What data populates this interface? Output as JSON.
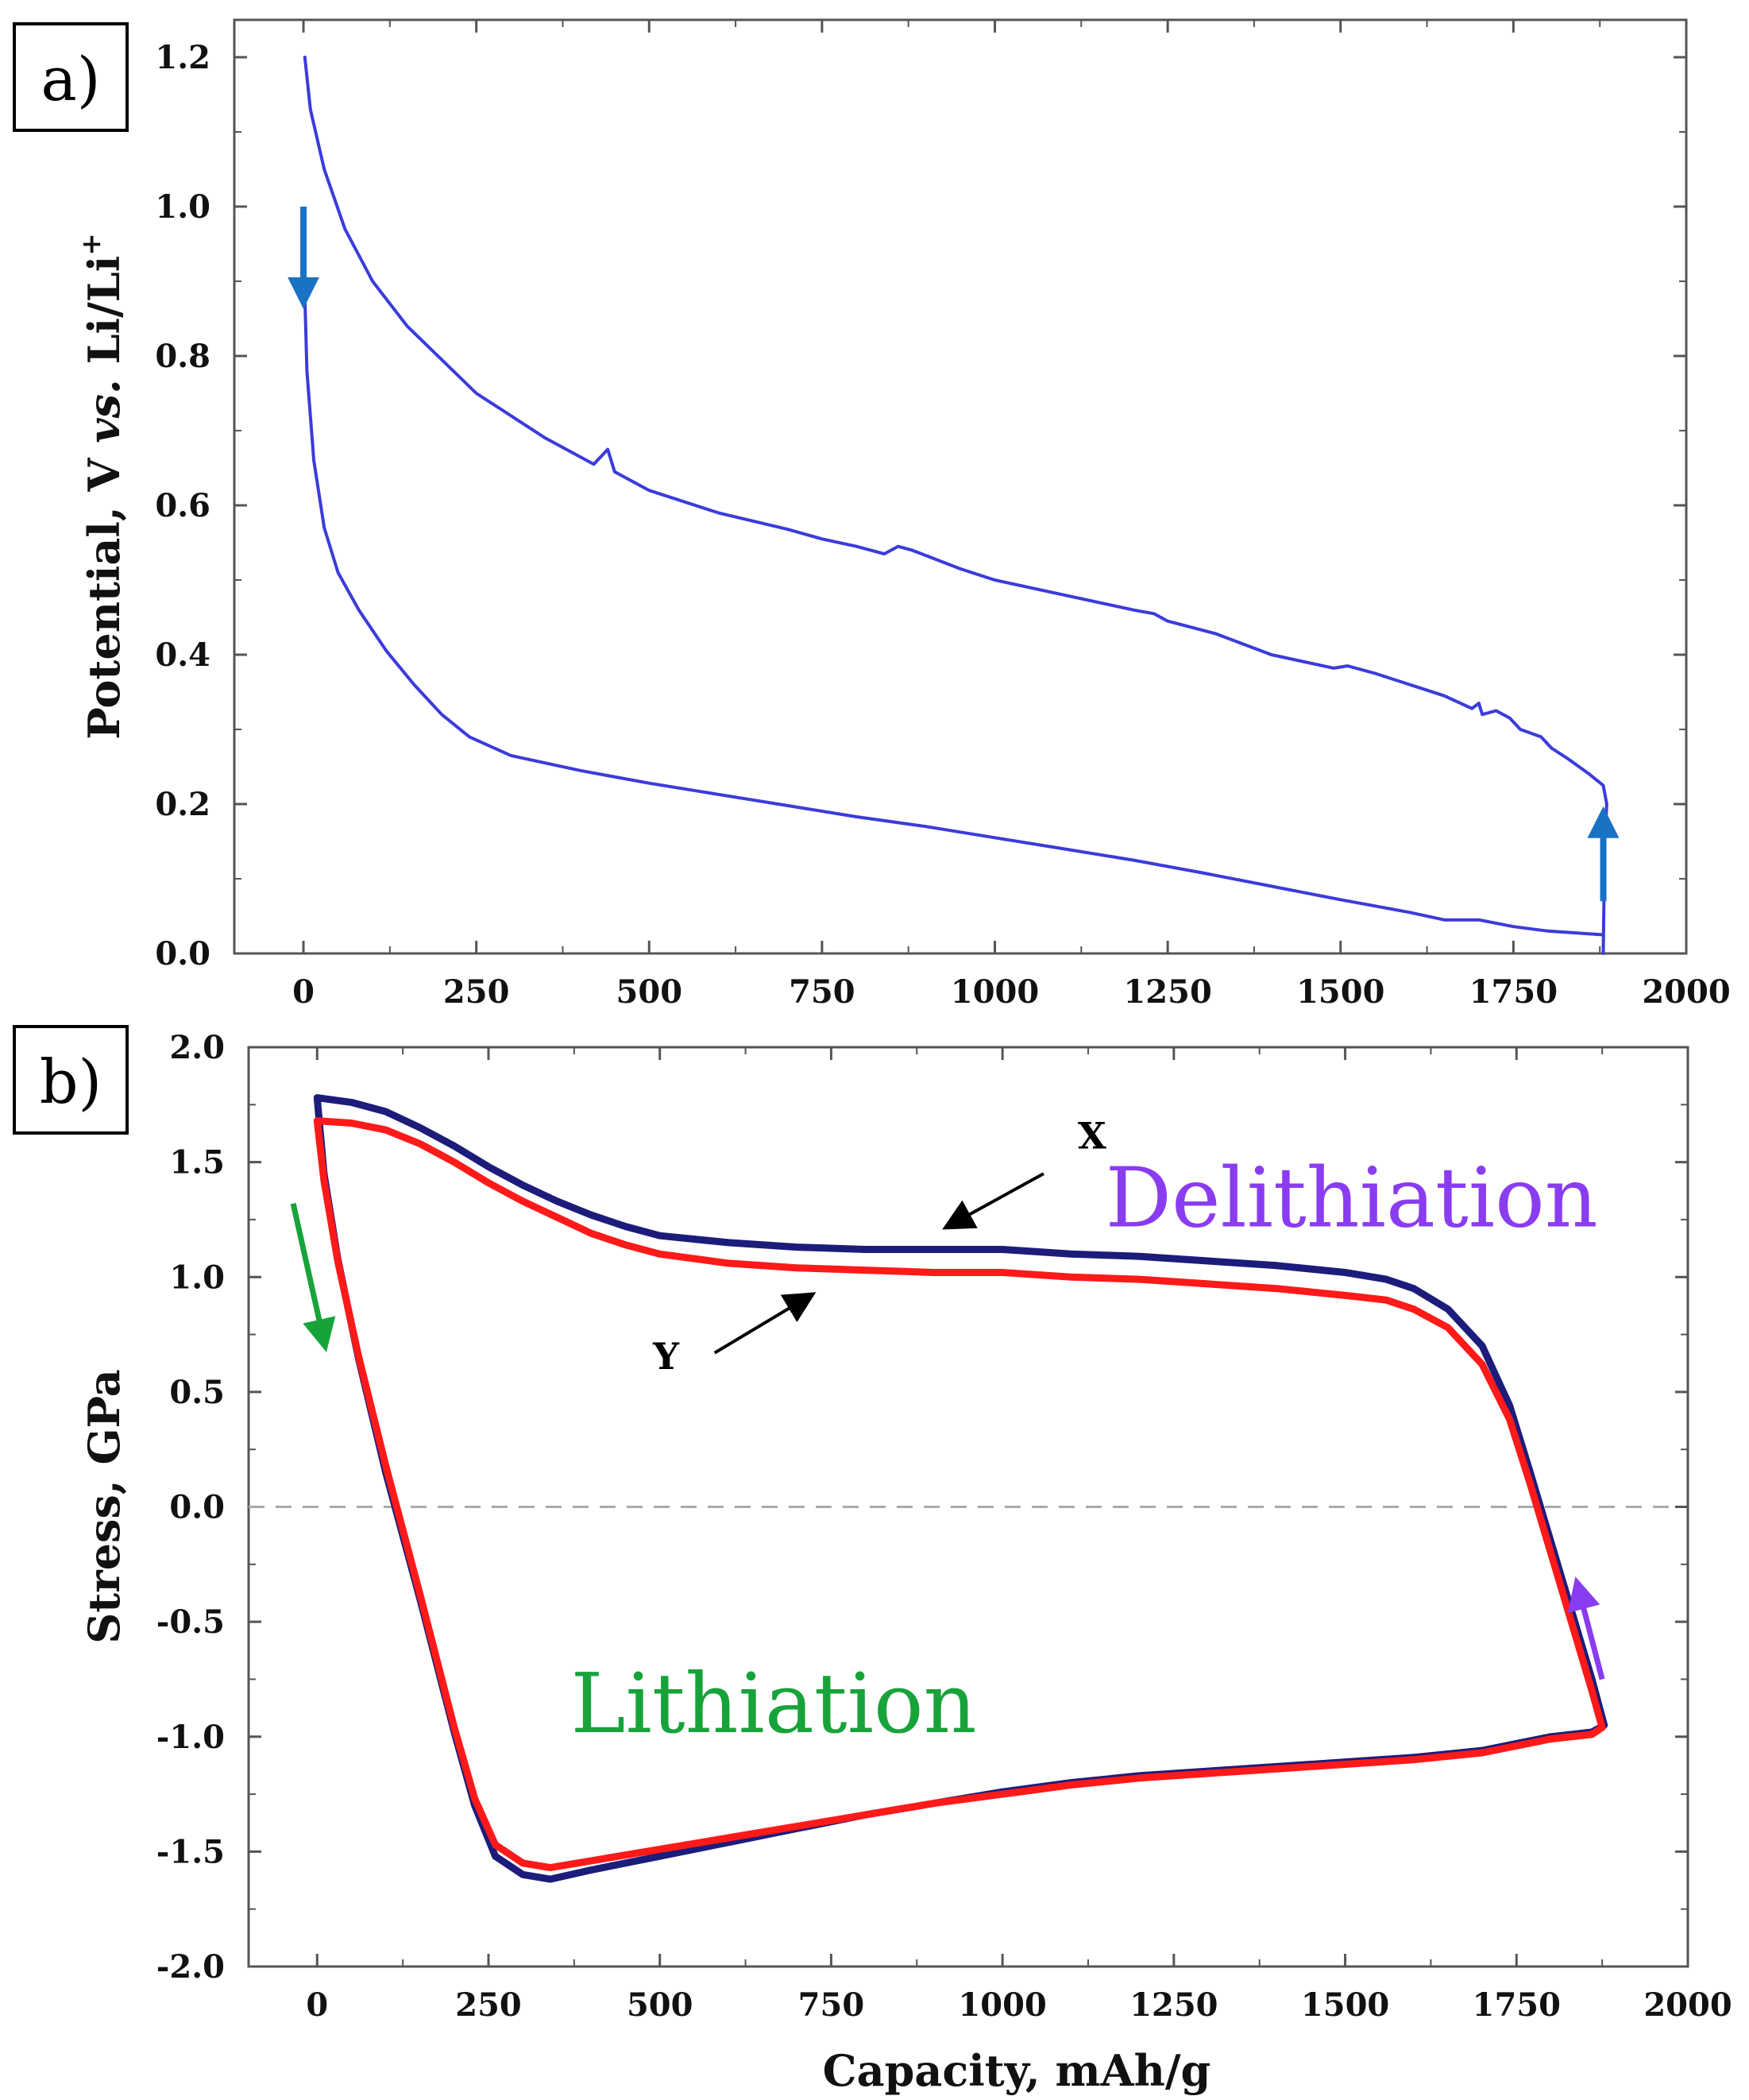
{
  "colors": {
    "potential_line": "#3b3bdc",
    "arrow_blue": "#1a72c4",
    "stress_x": "#1c1c7a",
    "stress_y": "#ff1a1a",
    "lithiation": "#17a33a",
    "delithiation": "#8a3cf0",
    "axis": "#555555",
    "zero_line": "#aaaaaa"
  },
  "chart_data": [
    {
      "panel": "a)",
      "type": "line",
      "xlabel": "",
      "ylabel_main": "Potential, V ",
      "ylabel_italic": "vs.",
      "ylabel_tail": " Li/Li",
      "ylabel_sup": "+",
      "xlim": [
        -100,
        2000
      ],
      "ylim": [
        0.0,
        1.25
      ],
      "xticks": [
        0,
        250,
        500,
        750,
        1000,
        1250,
        1500,
        1750,
        2000
      ],
      "xtick_labels": [
        "0",
        "250",
        "500",
        "750",
        "1000",
        "1250",
        "1500",
        "1750",
        "2000"
      ],
      "yticks": [
        0.0,
        0.2,
        0.4,
        0.6,
        0.8,
        1.0,
        1.2
      ],
      "ytick_labels": [
        "0.0",
        "0.2",
        "0.4",
        "0.6",
        "0.8",
        "1.0",
        "1.2"
      ],
      "series": [
        {
          "name": "Lithiation",
          "color": "#3b3bdc",
          "points": [
            [
              0,
              0.95
            ],
            [
              5,
              0.78
            ],
            [
              15,
              0.66
            ],
            [
              30,
              0.57
            ],
            [
              50,
              0.51
            ],
            [
              80,
              0.46
            ],
            [
              120,
              0.405
            ],
            [
              160,
              0.36
            ],
            [
              200,
              0.32
            ],
            [
              240,
              0.29
            ],
            [
              300,
              0.265
            ],
            [
              400,
              0.245
            ],
            [
              500,
              0.228
            ],
            [
              600,
              0.213
            ],
            [
              700,
              0.198
            ],
            [
              800,
              0.183
            ],
            [
              900,
              0.17
            ],
            [
              1000,
              0.155
            ],
            [
              1100,
              0.14
            ],
            [
              1200,
              0.125
            ],
            [
              1300,
              0.108
            ],
            [
              1400,
              0.09
            ],
            [
              1500,
              0.072
            ],
            [
              1600,
              0.055
            ],
            [
              1650,
              0.045
            ],
            [
              1700,
              0.045
            ],
            [
              1750,
              0.036
            ],
            [
              1800,
              0.03
            ],
            [
              1880,
              0.025
            ]
          ]
        },
        {
          "name": "Delithiation",
          "color": "#3b3bdc",
          "points": [
            [
              1880,
              0.0
            ],
            [
              1882,
              0.15
            ],
            [
              1885,
              0.2
            ],
            [
              1880,
              0.225
            ],
            [
              1860,
              0.24
            ],
            [
              1830,
              0.26
            ],
            [
              1805,
              0.275
            ],
            [
              1790,
              0.29
            ],
            [
              1760,
              0.3
            ],
            [
              1745,
              0.315
            ],
            [
              1725,
              0.325
            ],
            [
              1705,
              0.32
            ],
            [
              1700,
              0.335
            ],
            [
              1690,
              0.328
            ],
            [
              1650,
              0.345
            ],
            [
              1600,
              0.36
            ],
            [
              1550,
              0.375
            ],
            [
              1510,
              0.385
            ],
            [
              1490,
              0.382
            ],
            [
              1400,
              0.4
            ],
            [
              1320,
              0.428
            ],
            [
              1250,
              0.445
            ],
            [
              1230,
              0.455
            ],
            [
              1200,
              0.46
            ],
            [
              1100,
              0.48
            ],
            [
              1000,
              0.5
            ],
            [
              950,
              0.515
            ],
            [
              880,
              0.54
            ],
            [
              860,
              0.545
            ],
            [
              840,
              0.535
            ],
            [
              800,
              0.545
            ],
            [
              750,
              0.555
            ],
            [
              700,
              0.568
            ],
            [
              600,
              0.59
            ],
            [
              500,
              0.62
            ],
            [
              450,
              0.645
            ],
            [
              440,
              0.675
            ],
            [
              430,
              0.665
            ],
            [
              420,
              0.655
            ],
            [
              350,
              0.69
            ],
            [
              250,
              0.75
            ],
            [
              150,
              0.84
            ],
            [
              100,
              0.9
            ],
            [
              60,
              0.97
            ],
            [
              30,
              1.05
            ],
            [
              10,
              1.13
            ],
            [
              2,
              1.2
            ]
          ]
        }
      ],
      "arrows": [
        {
          "color": "#1a72c4",
          "from": [
            0,
            1.0
          ],
          "to": [
            0,
            0.88
          ],
          "direction": "down"
        },
        {
          "color": "#1a72c4",
          "from": [
            1880,
            0.07
          ],
          "to": [
            1880,
            0.18
          ],
          "direction": "up"
        }
      ]
    },
    {
      "panel": "b)",
      "type": "line",
      "xlabel": "Capacity, mAh/g",
      "ylabel": "Stress, GPa",
      "xlim": [
        -100,
        2000
      ],
      "ylim": [
        -2.0,
        2.0
      ],
      "xticks": [
        0,
        250,
        500,
        750,
        1000,
        1250,
        1500,
        1750,
        2000
      ],
      "xtick_labels": [
        "0",
        "250",
        "500",
        "750",
        "1000",
        "1250",
        "1500",
        "1750",
        "2000"
      ],
      "yticks": [
        -2.0,
        -1.5,
        -1.0,
        -0.5,
        0.0,
        0.5,
        1.0,
        1.5,
        2.0
      ],
      "ytick_labels": [
        "-2.0",
        "-1.5",
        "-1.0",
        "-0.5",
        "0.0",
        "0.5",
        "1.0",
        "1.5",
        "2.0"
      ],
      "reference_line": {
        "y": 0.0,
        "style": "dashed"
      },
      "series": [
        {
          "name": "X",
          "color": "#1c1c7a",
          "points": [
            [
              0,
              1.78
            ],
            [
              50,
              1.76
            ],
            [
              100,
              1.72
            ],
            [
              150,
              1.65
            ],
            [
              200,
              1.57
            ],
            [
              250,
              1.48
            ],
            [
              300,
              1.4
            ],
            [
              350,
              1.33
            ],
            [
              400,
              1.27
            ],
            [
              450,
              1.22
            ],
            [
              500,
              1.18
            ],
            [
              600,
              1.15
            ],
            [
              700,
              1.13
            ],
            [
              800,
              1.12
            ],
            [
              900,
              1.12
            ],
            [
              1000,
              1.12
            ],
            [
              1100,
              1.1
            ],
            [
              1200,
              1.09
            ],
            [
              1300,
              1.07
            ],
            [
              1400,
              1.05
            ],
            [
              1500,
              1.02
            ],
            [
              1560,
              0.99
            ],
            [
              1600,
              0.95
            ],
            [
              1650,
              0.86
            ],
            [
              1700,
              0.7
            ],
            [
              1740,
              0.44
            ],
            [
              1770,
              0.15
            ],
            [
              1800,
              -0.15
            ],
            [
              1830,
              -0.45
            ],
            [
              1860,
              -0.75
            ],
            [
              1878,
              -0.95
            ],
            [
              1860,
              -0.98
            ],
            [
              1800,
              -1.0
            ],
            [
              1750,
              -1.03
            ],
            [
              1700,
              -1.06
            ],
            [
              1600,
              -1.09
            ],
            [
              1500,
              -1.11
            ],
            [
              1400,
              -1.13
            ],
            [
              1300,
              -1.15
            ],
            [
              1200,
              -1.17
            ],
            [
              1100,
              -1.2
            ],
            [
              1000,
              -1.24
            ],
            [
              900,
              -1.29
            ],
            [
              800,
              -1.34
            ],
            [
              700,
              -1.4
            ],
            [
              600,
              -1.46
            ],
            [
              500,
              -1.52
            ],
            [
              400,
              -1.58
            ],
            [
              340,
              -1.62
            ],
            [
              300,
              -1.6
            ],
            [
              260,
              -1.52
            ],
            [
              230,
              -1.3
            ],
            [
              200,
              -0.98
            ],
            [
              150,
              -0.4
            ],
            [
              100,
              0.15
            ],
            [
              60,
              0.65
            ],
            [
              30,
              1.08
            ],
            [
              10,
              1.45
            ],
            [
              0,
              1.78
            ]
          ]
        },
        {
          "name": "Y",
          "color": "#ff1a1a",
          "points": [
            [
              0,
              1.68
            ],
            [
              50,
              1.67
            ],
            [
              100,
              1.64
            ],
            [
              150,
              1.58
            ],
            [
              200,
              1.5
            ],
            [
              250,
              1.41
            ],
            [
              300,
              1.33
            ],
            [
              350,
              1.26
            ],
            [
              400,
              1.19
            ],
            [
              450,
              1.14
            ],
            [
              500,
              1.1
            ],
            [
              600,
              1.06
            ],
            [
              700,
              1.04
            ],
            [
              800,
              1.03
            ],
            [
              900,
              1.02
            ],
            [
              1000,
              1.02
            ],
            [
              1100,
              1.0
            ],
            [
              1200,
              0.99
            ],
            [
              1300,
              0.97
            ],
            [
              1400,
              0.95
            ],
            [
              1500,
              0.92
            ],
            [
              1560,
              0.9
            ],
            [
              1600,
              0.86
            ],
            [
              1650,
              0.78
            ],
            [
              1700,
              0.62
            ],
            [
              1740,
              0.38
            ],
            [
              1770,
              0.1
            ],
            [
              1800,
              -0.2
            ],
            [
              1830,
              -0.5
            ],
            [
              1860,
              -0.8
            ],
            [
              1875,
              -0.96
            ],
            [
              1860,
              -0.99
            ],
            [
              1800,
              -1.01
            ],
            [
              1750,
              -1.04
            ],
            [
              1700,
              -1.07
            ],
            [
              1600,
              -1.1
            ],
            [
              1500,
              -1.12
            ],
            [
              1400,
              -1.14
            ],
            [
              1300,
              -1.16
            ],
            [
              1200,
              -1.18
            ],
            [
              1100,
              -1.21
            ],
            [
              1000,
              -1.25
            ],
            [
              900,
              -1.29
            ],
            [
              800,
              -1.34
            ],
            [
              700,
              -1.39
            ],
            [
              600,
              -1.44
            ],
            [
              500,
              -1.49
            ],
            [
              400,
              -1.54
            ],
            [
              340,
              -1.57
            ],
            [
              300,
              -1.55
            ],
            [
              260,
              -1.47
            ],
            [
              230,
              -1.27
            ],
            [
              200,
              -0.96
            ],
            [
              150,
              -0.38
            ],
            [
              100,
              0.18
            ],
            [
              60,
              0.66
            ],
            [
              30,
              1.07
            ],
            [
              10,
              1.42
            ],
            [
              0,
              1.68
            ]
          ]
        }
      ],
      "annotations": [
        {
          "text": "X",
          "x": 1110,
          "y": 1.56
        },
        {
          "text": "Y",
          "x": 490,
          "y": 0.6
        },
        {
          "text": "Delithiation",
          "x": 1150,
          "y": 1.22,
          "color": "#8a3cf0"
        },
        {
          "text": "Lithiation",
          "x": 370,
          "y": -0.98,
          "color": "#17a33a"
        }
      ],
      "arrows": [
        {
          "color": "#000000",
          "from": [
            1060,
            1.45
          ],
          "to": [
            920,
            1.22
          ],
          "target": "X"
        },
        {
          "color": "#000000",
          "from": [
            580,
            0.67
          ],
          "to": [
            720,
            0.92
          ],
          "target": "Y"
        },
        {
          "color": "#17a33a",
          "from": [
            -35,
            1.32
          ],
          "to": [
            10,
            0.72
          ],
          "direction": "down"
        },
        {
          "color": "#8a3cf0",
          "from": [
            1875,
            -0.75
          ],
          "to": [
            1840,
            -0.35
          ],
          "direction": "up"
        }
      ]
    }
  ]
}
